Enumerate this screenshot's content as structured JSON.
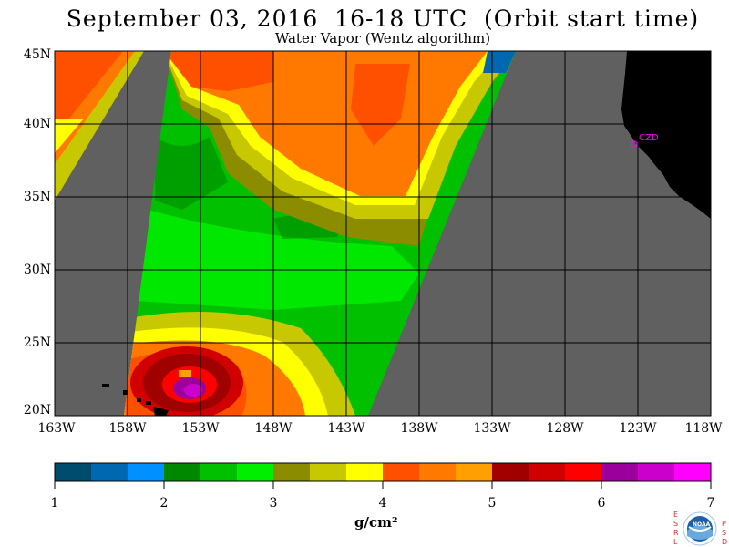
{
  "header": {
    "title": "September 03, 2016  16-18 UTC  (Orbit start time)",
    "subtitle": "Water Vapor (Wentz algorithm)"
  },
  "map": {
    "lat_labels": [
      "45N",
      "40N",
      "35N",
      "30N",
      "25N",
      "20N"
    ],
    "lon_labels": [
      "163W",
      "158W",
      "153W",
      "148W",
      "143W",
      "138W",
      "133W",
      "128W",
      "123W",
      "118W"
    ],
    "station_label": "CZD",
    "colors": {
      "no_data": "#606060",
      "land": "#000000",
      "grid": "#000000",
      "station": "#ff00ff"
    }
  },
  "colorbar": {
    "tick_labels": [
      "1",
      "2",
      "3",
      "4",
      "5",
      "6",
      "7"
    ],
    "unit_label": "g/cm²",
    "colors": [
      "#004c6e",
      "#0068b0",
      "#0090ff",
      "#008800",
      "#00c000",
      "#00ee00",
      "#8c8c00",
      "#c8c800",
      "#ffff00",
      "#ff5000",
      "#ff7800",
      "#ffa000",
      "#a00000",
      "#d00000",
      "#ff0000",
      "#9c009c",
      "#cc00cc",
      "#ff00ff"
    ]
  },
  "logo": {
    "left_letters": [
      "E",
      "S",
      "R",
      "L"
    ],
    "right_letters": [
      "P",
      "S",
      "D"
    ],
    "center_text": "NOAA"
  }
}
